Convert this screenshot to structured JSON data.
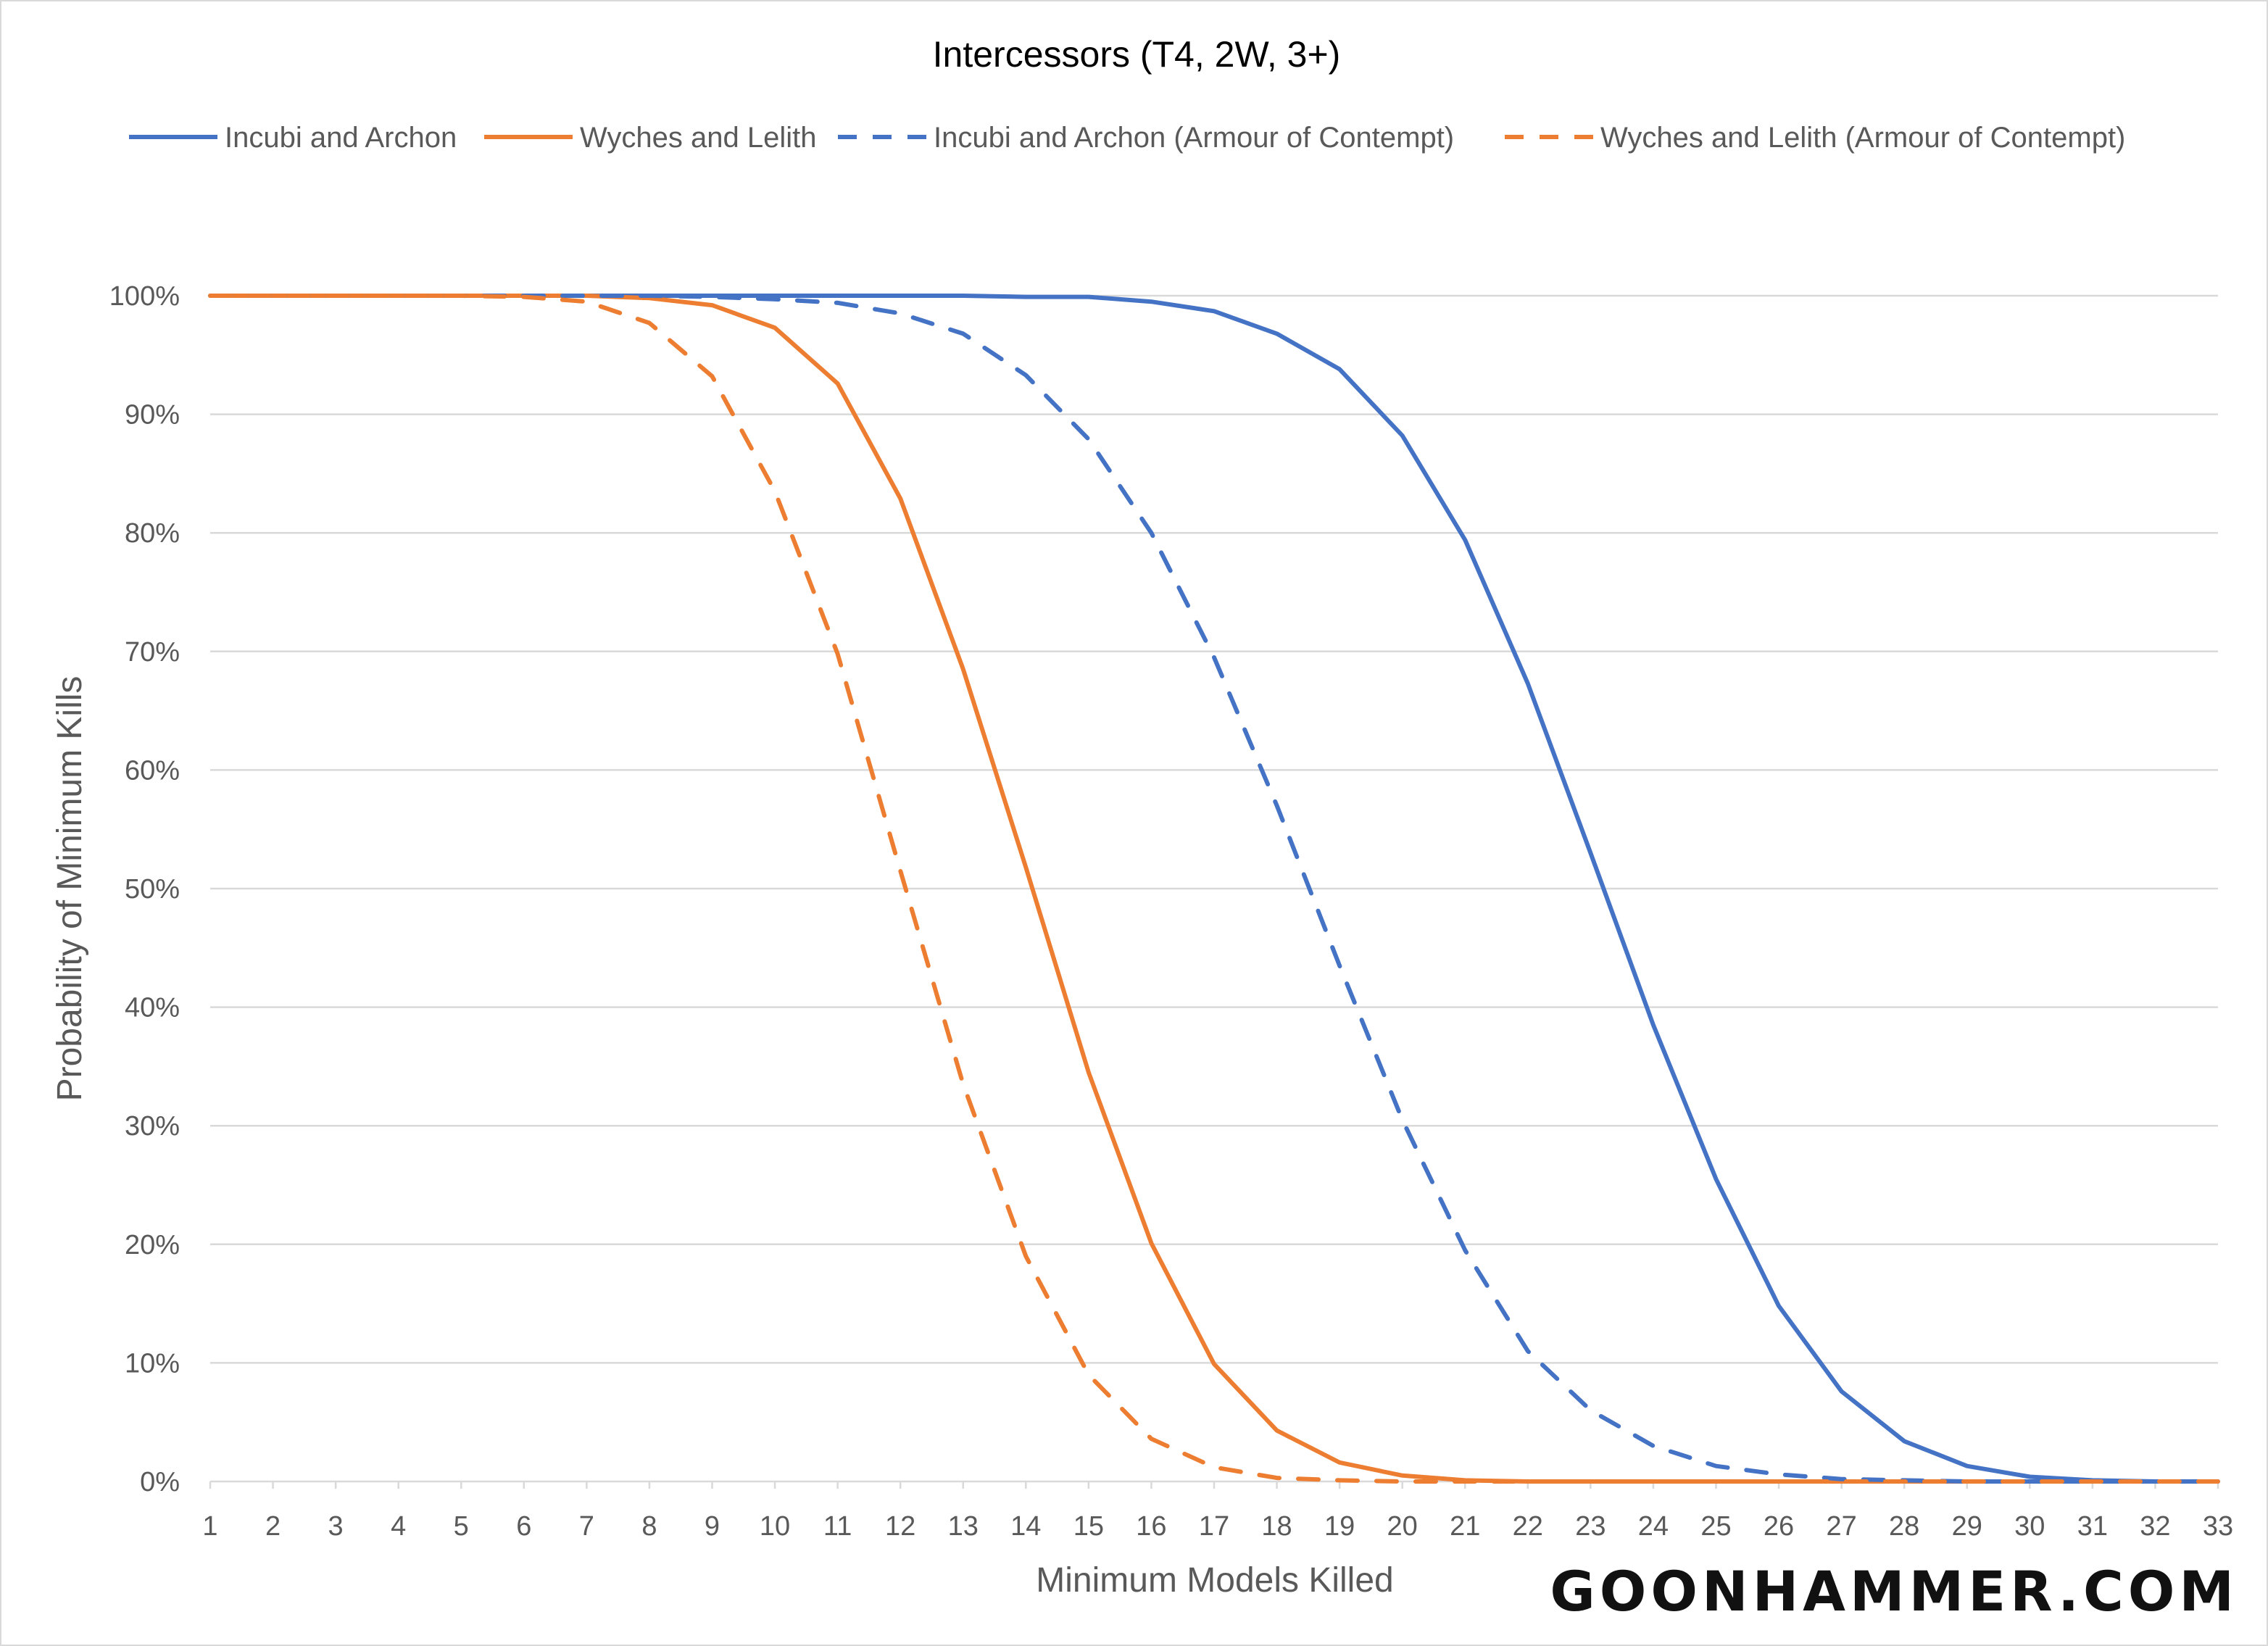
{
  "chart_data": {
    "type": "line",
    "title": "Intercessors (T4, 2W, 3+)",
    "xlabel": "Minimum Models Killed",
    "ylabel": "Probability of Minimum Kills",
    "x": [
      1,
      2,
      3,
      4,
      5,
      6,
      7,
      8,
      9,
      10,
      11,
      12,
      13,
      14,
      15,
      16,
      17,
      18,
      19,
      20,
      21,
      22,
      23,
      24,
      25,
      26,
      27,
      28,
      29,
      30,
      31,
      32,
      33
    ],
    "ylim": [
      0,
      100
    ],
    "yticks": [
      "0%",
      "10%",
      "20%",
      "30%",
      "40%",
      "50%",
      "60%",
      "70%",
      "80%",
      "90%",
      "100%"
    ],
    "grid": true,
    "legend_position": "top",
    "series": [
      {
        "name": "Incubi and Archon",
        "color": "#4472C4",
        "dash": false,
        "values": [
          100,
          100,
          100,
          100,
          100,
          100,
          100,
          100,
          100,
          100,
          100,
          100,
          100,
          99.9,
          99.9,
          99.5,
          98.7,
          96.8,
          93.8,
          88.2,
          79.4,
          67.3,
          53.0,
          38.5,
          25.5,
          14.8,
          7.6,
          3.4,
          1.3,
          0.4,
          0.1,
          0,
          0
        ]
      },
      {
        "name": "Wyches and Lelith",
        "color": "#ED7D31",
        "dash": false,
        "values": [
          100,
          100,
          100,
          100,
          100,
          100,
          100,
          99.8,
          99.2,
          97.3,
          92.6,
          82.9,
          68.5,
          51.8,
          34.5,
          20.1,
          9.9,
          4.3,
          1.6,
          0.5,
          0.1,
          0,
          0,
          0,
          0,
          0,
          0,
          0,
          0,
          0,
          0,
          0,
          0
        ]
      },
      {
        "name": "Incubi and Archon (Armour of Contempt)",
        "color": "#4472C4",
        "dash": true,
        "values": [
          100,
          100,
          100,
          100,
          100,
          100,
          100,
          100,
          99.9,
          99.7,
          99.4,
          98.5,
          96.8,
          93.3,
          87.9,
          80.0,
          69.5,
          57.0,
          43.5,
          30.5,
          19.5,
          11.0,
          6.0,
          3.0,
          1.3,
          0.6,
          0.2,
          0.1,
          0,
          0,
          0,
          0,
          0
        ]
      },
      {
        "name": "Wyches and Lelith (Armour of Contempt)",
        "color": "#ED7D31",
        "dash": true,
        "values": [
          100,
          100,
          100,
          100,
          100,
          99.9,
          99.5,
          97.7,
          93.2,
          83.5,
          69.8,
          51.5,
          33.5,
          19.0,
          9.0,
          3.6,
          1.2,
          0.3,
          0.1,
          0,
          0,
          0,
          0,
          0,
          0,
          0,
          0,
          0,
          0,
          0,
          0,
          0,
          0
        ]
      }
    ]
  },
  "watermark": "GOONHAMMER.COM"
}
